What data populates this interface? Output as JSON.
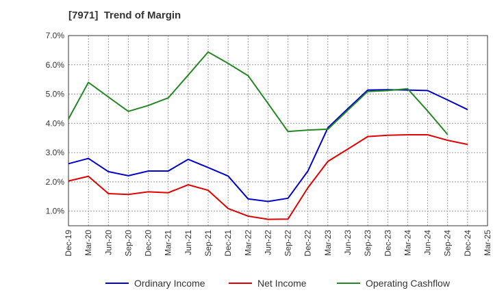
{
  "chart_data": {
    "type": "line",
    "title": "[7971]  Trend of Margin",
    "xlabel": "",
    "ylabel": "",
    "ylim": [
      0.5,
      7.0
    ],
    "y_ticks": [
      "1.0%",
      "2.0%",
      "3.0%",
      "4.0%",
      "5.0%",
      "6.0%",
      "7.0%"
    ],
    "y_tick_values": [
      1.0,
      2.0,
      3.0,
      4.0,
      5.0,
      6.0,
      7.0
    ],
    "grid": true,
    "legend_position": "bottom",
    "categories": [
      "Dec-19",
      "Mar-20",
      "Jun-20",
      "Sep-20",
      "Dec-20",
      "Mar-21",
      "Jun-21",
      "Sep-21",
      "Dec-21",
      "Mar-22",
      "Jun-22",
      "Sep-22",
      "Dec-22",
      "Mar-23",
      "Jun-23",
      "Sep-23",
      "Dec-23",
      "Mar-24",
      "Jun-24",
      "Sep-24",
      "Dec-24",
      "Mar-25"
    ],
    "series": [
      {
        "name": "Ordinary Income",
        "color": "#0000cc",
        "values": [
          2.62,
          2.8,
          2.35,
          2.21,
          2.37,
          2.37,
          2.77,
          2.49,
          2.2,
          1.42,
          1.33,
          1.44,
          2.37,
          3.85,
          4.5,
          5.14,
          5.15,
          5.14,
          5.12,
          4.8,
          4.47,
          null
        ]
      },
      {
        "name": "Net Income",
        "color": "#e00000",
        "values": [
          2.03,
          2.19,
          1.6,
          1.57,
          1.66,
          1.63,
          1.9,
          1.71,
          1.09,
          0.83,
          0.72,
          0.73,
          1.8,
          2.7,
          3.12,
          3.55,
          3.59,
          3.61,
          3.61,
          3.42,
          3.28,
          null
        ]
      },
      {
        "name": "Operating Cashflow",
        "color": "#228822",
        "values": [
          4.15,
          5.4,
          4.9,
          4.41,
          4.61,
          4.87,
          5.65,
          6.44,
          6.05,
          5.63,
          4.68,
          3.72,
          3.77,
          3.8,
          4.45,
          5.09,
          5.12,
          5.18,
          4.42,
          3.62,
          null,
          null
        ]
      }
    ]
  }
}
